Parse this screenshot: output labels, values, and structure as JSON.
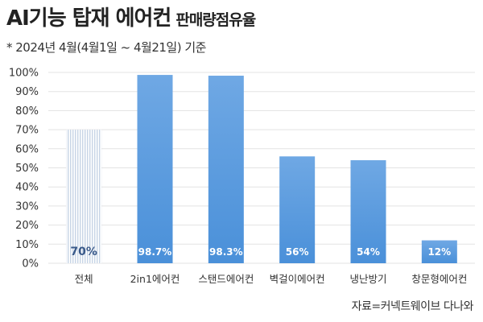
{
  "title": "AI기능 탑재 에어컨",
  "title_sub": "판매량점유율",
  "note": "* 2024년 4월(4월1일 ~ 4월21일) 기준",
  "source": "자료=커넥트웨이브 다나와",
  "colors": {
    "bar": "#4a90d9",
    "bar_top": "#6fa8e4",
    "hatch": "#c7d4e6",
    "grid": "#e3e3e3"
  },
  "chart_data": {
    "type": "bar",
    "categories": [
      "전체",
      "2in1에어컨",
      "스탠드에어컨",
      "벽걸이에어컨",
      "냉난방기",
      "창문형에어컨"
    ],
    "values": [
      70,
      98.7,
      98.3,
      56,
      54,
      12
    ],
    "value_labels": [
      "70%",
      "98.7%",
      "98.3%",
      "56%",
      "54%",
      "12%"
    ],
    "yticks": [
      "0%",
      "10%",
      "20%",
      "30%",
      "40%",
      "50%",
      "60%",
      "70%",
      "80%",
      "90%",
      "100%"
    ],
    "ylim": [
      0,
      100
    ],
    "grid": true
  }
}
